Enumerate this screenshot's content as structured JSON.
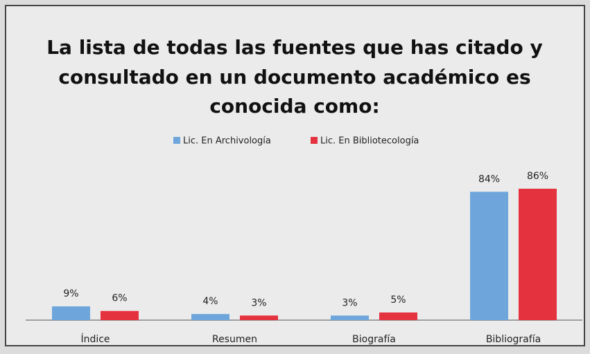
{
  "chart_data": {
    "type": "bar",
    "title": [
      "La lista de todas las fuentes  que has citado y",
      "consultado en un documento académico es",
      "conocida como:"
    ],
    "categories": [
      "Índice",
      "Resumen",
      "Biografía",
      "Bibliografía"
    ],
    "series": [
      {
        "name": "Lic. En Archivología",
        "color": "#6ea6dc",
        "values": [
          9,
          4,
          3,
          84
        ],
        "value_labels": [
          "9%",
          "4%",
          "3%",
          "84%"
        ]
      },
      {
        "name": "Lic. En Bibliotecología",
        "color": "#e5323f",
        "values": [
          6,
          3,
          5,
          86
        ],
        "value_labels": [
          "6%",
          "3%",
          "5%",
          "86%"
        ]
      }
    ],
    "legend": "top"
  }
}
